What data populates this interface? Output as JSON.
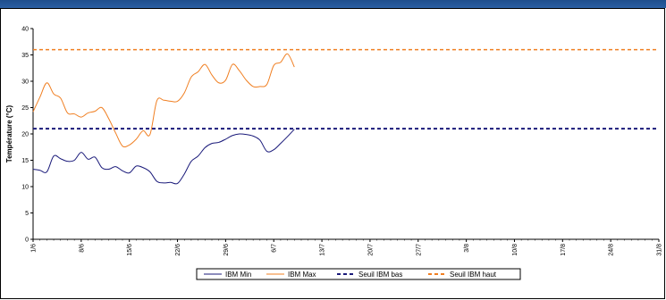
{
  "window": {
    "title": ""
  },
  "chart_data": {
    "type": "line",
    "title": "",
    "xlabel": "",
    "ylabel": "Température (°C)",
    "ylim": [
      0,
      40
    ],
    "yticks": [
      "0",
      "5",
      "10",
      "15",
      "20",
      "25",
      "30",
      "35",
      "40"
    ],
    "x_ticks": [
      "1/6",
      "8/6",
      "15/6",
      "22/6",
      "29/6",
      "6/7",
      "13/7",
      "20/7",
      "27/7",
      "3/8",
      "10/8",
      "17/8",
      "24/8",
      "31/8"
    ],
    "x_range_days": [
      0,
      91
    ],
    "grid": false,
    "legend_position": "bottom",
    "series": [
      {
        "name": "IBM Min",
        "color": "#1a1a7a",
        "style": "solid",
        "points": [
          [
            0,
            13.3
          ],
          [
            1,
            13.1
          ],
          [
            2,
            12.8
          ],
          [
            3,
            15.8
          ],
          [
            4,
            15.3
          ],
          [
            5,
            14.8
          ],
          [
            6,
            15.0
          ],
          [
            7,
            16.5
          ],
          [
            8,
            15.2
          ],
          [
            9,
            15.6
          ],
          [
            10,
            13.6
          ],
          [
            11,
            13.3
          ],
          [
            12,
            13.8
          ],
          [
            13,
            13.0
          ],
          [
            14,
            12.6
          ],
          [
            15,
            13.9
          ],
          [
            16,
            13.6
          ],
          [
            17,
            12.8
          ],
          [
            18,
            11.0
          ],
          [
            19,
            10.7
          ],
          [
            20,
            10.8
          ],
          [
            21,
            10.6
          ],
          [
            22,
            12.4
          ],
          [
            23,
            14.8
          ],
          [
            24,
            15.8
          ],
          [
            25,
            17.4
          ],
          [
            26,
            18.2
          ],
          [
            27,
            18.4
          ],
          [
            28,
            19.0
          ],
          [
            29,
            19.7
          ],
          [
            30,
            20.0
          ],
          [
            31,
            19.9
          ],
          [
            32,
            19.6
          ],
          [
            33,
            18.8
          ],
          [
            34,
            16.7
          ],
          [
            35,
            17.0
          ],
          [
            36,
            18.2
          ],
          [
            37,
            19.5
          ],
          [
            38,
            20.9
          ]
        ]
      },
      {
        "name": "IBM Max",
        "color": "#f07f22",
        "style": "solid",
        "points": [
          [
            0,
            24.2
          ],
          [
            1,
            27.0
          ],
          [
            2,
            29.7
          ],
          [
            3,
            27.6
          ],
          [
            4,
            26.8
          ],
          [
            5,
            24.0
          ],
          [
            6,
            23.8
          ],
          [
            7,
            23.2
          ],
          [
            8,
            24.0
          ],
          [
            9,
            24.3
          ],
          [
            10,
            25.0
          ],
          [
            11,
            22.9
          ],
          [
            12,
            20.2
          ],
          [
            13,
            17.7
          ],
          [
            14,
            17.9
          ],
          [
            15,
            19.0
          ],
          [
            16,
            20.6
          ],
          [
            17,
            19.9
          ],
          [
            18,
            26.3
          ],
          [
            19,
            26.4
          ],
          [
            20,
            26.2
          ],
          [
            21,
            26.2
          ],
          [
            22,
            27.8
          ],
          [
            23,
            30.8
          ],
          [
            24,
            31.8
          ],
          [
            25,
            33.2
          ],
          [
            26,
            31.2
          ],
          [
            27,
            29.7
          ],
          [
            28,
            30.2
          ],
          [
            29,
            33.2
          ],
          [
            30,
            32.0
          ],
          [
            31,
            30.2
          ],
          [
            32,
            29.0
          ],
          [
            33,
            29.0
          ],
          [
            34,
            29.4
          ],
          [
            35,
            33.0
          ],
          [
            36,
            33.6
          ],
          [
            37,
            35.2
          ],
          [
            38,
            32.7
          ]
        ]
      },
      {
        "name": "Seuil IBM bas",
        "color": "#1a1a7a",
        "style": "dashed",
        "constant": 21
      },
      {
        "name": "Seuil IBM haut",
        "color": "#f07f22",
        "style": "dashed",
        "constant": 36
      }
    ]
  }
}
